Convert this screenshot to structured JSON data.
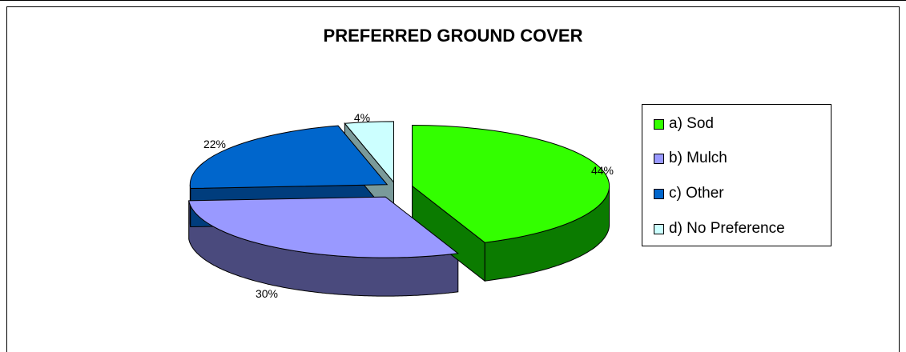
{
  "chart_data": {
    "type": "pie",
    "title": "PREFERRED GROUND COVER",
    "categories": [
      "a) Sod",
      "b) Mulch",
      "c) Other",
      "d) No Preference"
    ],
    "values": [
      44,
      30,
      22,
      4
    ],
    "data_labels": [
      "44%",
      "30%",
      "22%",
      "4%"
    ],
    "colors": [
      "#33ff00",
      "#9999ff",
      "#0066cc",
      "#ccffff"
    ],
    "side_colors": [
      "#0b7b00",
      "#4a4a7d",
      "#003d7d",
      "#7a9a9a"
    ],
    "legend_position": "right",
    "style": "3d-exploded"
  }
}
